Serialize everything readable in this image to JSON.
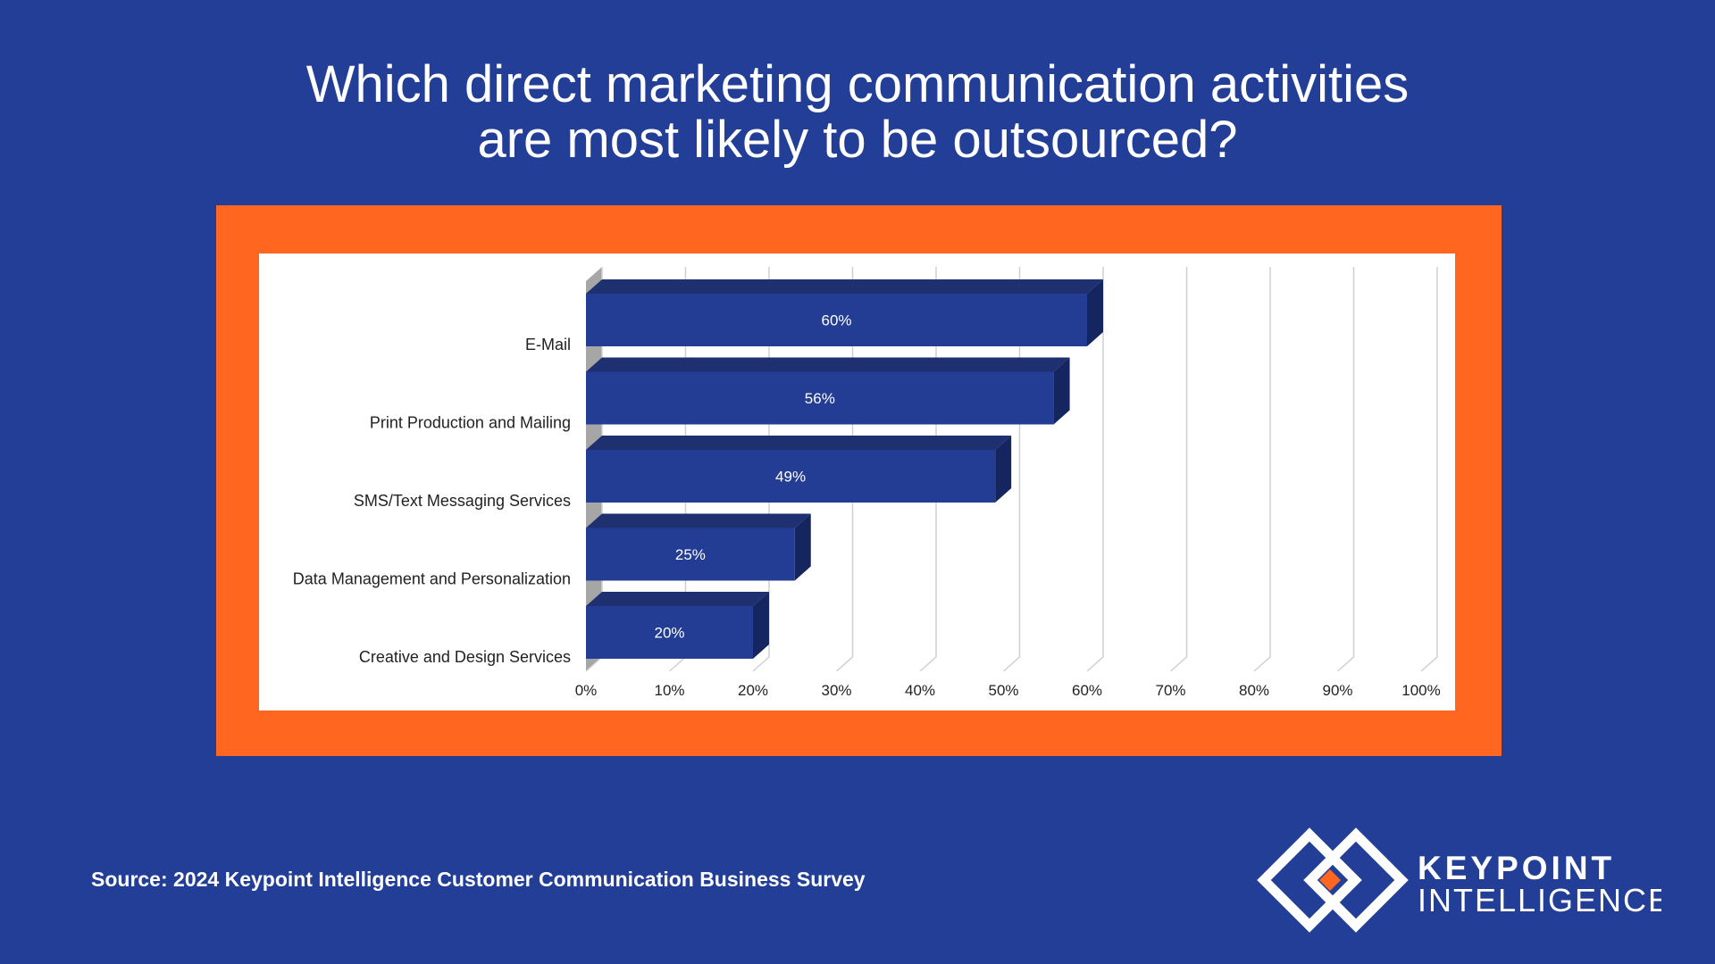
{
  "chart_data": {
    "type": "bar",
    "orientation": "horizontal",
    "title": "Which direct marketing communication activities are most likely to be outsourced?",
    "categories": [
      "E-Mail",
      "Print Production and Mailing",
      "SMS/Text Messaging Services",
      "Data Management and Personalization",
      "Creative and Design Services"
    ],
    "values": [
      60,
      56,
      49,
      25,
      20
    ],
    "value_labels": [
      "60%",
      "56%",
      "49%",
      "25%",
      "20%"
    ],
    "color": "#233d94",
    "xlim": [
      0,
      100
    ],
    "xticks": [
      {
        "value": 0,
        "label": "0%"
      },
      {
        "value": 10,
        "label": "10%"
      },
      {
        "value": 20,
        "label": "20%"
      },
      {
        "value": 30,
        "label": "30%"
      },
      {
        "value": 40,
        "label": "40%"
      },
      {
        "value": 50,
        "label": "50%"
      },
      {
        "value": 60,
        "label": "60%"
      },
      {
        "value": 70,
        "label": "70%"
      },
      {
        "value": 80,
        "label": "80%"
      },
      {
        "value": 90,
        "label": "90%"
      },
      {
        "value": 100,
        "label": "100%"
      }
    ],
    "grid": true
  },
  "source": "Source: 2024 Keypoint Intelligence Customer Communication Business Survey",
  "logo": {
    "line1": "KEYPOINT",
    "line2": "INTELLIGENCE"
  }
}
